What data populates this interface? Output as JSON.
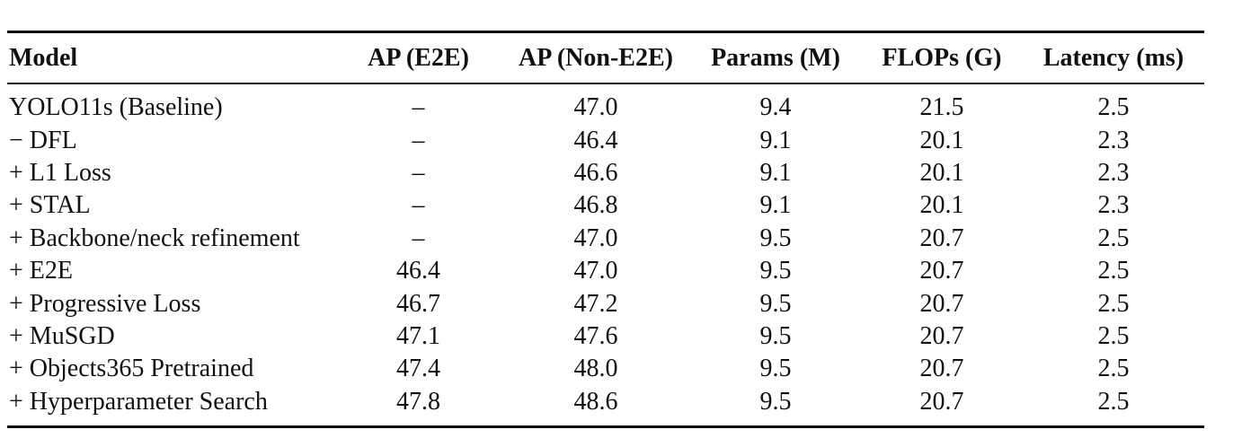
{
  "table": {
    "headers": [
      "Model",
      "AP (E2E)",
      "AP (Non-E2E)",
      "Params (M)",
      "FLOPs (G)",
      "Latency (ms)"
    ],
    "rows": [
      [
        "YOLO11s (Baseline)",
        "–",
        "47.0",
        "9.4",
        "21.5",
        "2.5"
      ],
      [
        "− DFL",
        "–",
        "46.4",
        "9.1",
        "20.1",
        "2.3"
      ],
      [
        "+ L1 Loss",
        "–",
        "46.6",
        "9.1",
        "20.1",
        "2.3"
      ],
      [
        "+ STAL",
        "–",
        "46.8",
        "9.1",
        "20.1",
        "2.3"
      ],
      [
        "+ Backbone/neck refinement",
        "–",
        "47.0",
        "9.5",
        "20.7",
        "2.5"
      ],
      [
        "+ E2E",
        "46.4",
        "47.0",
        "9.5",
        "20.7",
        "2.5"
      ],
      [
        "+ Progressive Loss",
        "46.7",
        "47.2",
        "9.5",
        "20.7",
        "2.5"
      ],
      [
        "+ MuSGD",
        "47.1",
        "47.6",
        "9.5",
        "20.7",
        "2.5"
      ],
      [
        "+ Objects365 Pretrained",
        "47.4",
        "48.0",
        "9.5",
        "20.7",
        "2.5"
      ],
      [
        "+ Hyperparameter Search",
        "47.8",
        "48.6",
        "9.5",
        "20.7",
        "2.5"
      ]
    ]
  }
}
